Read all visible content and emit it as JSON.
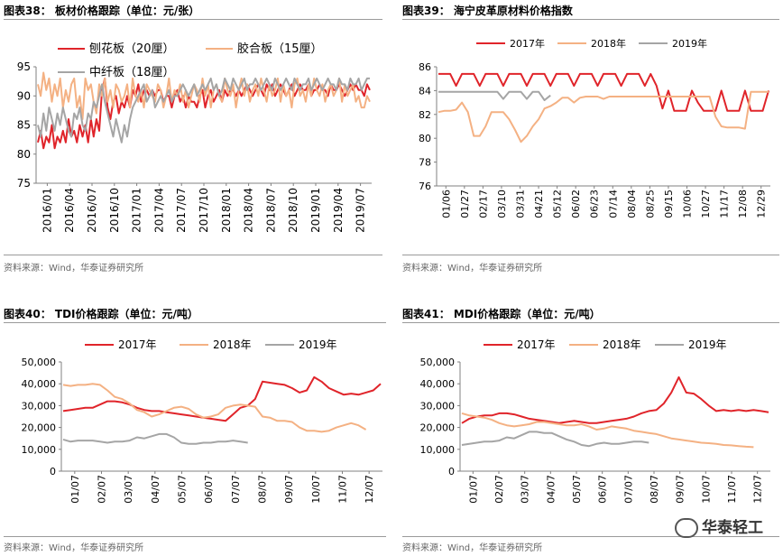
{
  "source": "资料来源：Wind，华泰证券研究所",
  "watermark": "华泰轻工",
  "colors": {
    "red": "#e0242a",
    "orange": "#f4b183",
    "gray": "#a5a5a5"
  },
  "chart_data": [
    {
      "id": "fig38",
      "fig_title": "图表38：  板材价格跟踪（单位：元/张）",
      "type": "line",
      "ylim": [
        75,
        95
      ],
      "yticks": [
        75,
        80,
        85,
        90,
        95
      ],
      "x_labels": [
        "2016/01",
        "2016/04",
        "2016/07",
        "2016/10",
        "2017/01",
        "2017/04",
        "2017/07",
        "2017/10",
        "2018/01",
        "2018/04",
        "2018/07",
        "2018/10",
        "2019/01",
        "2019/04",
        "2019/07"
      ],
      "series": [
        {
          "name": "刨花板（20厘）",
          "color": "red",
          "values": [
            82,
            84,
            81,
            83,
            82,
            85,
            81,
            83,
            82,
            84,
            82,
            86,
            83,
            84,
            82,
            85,
            83,
            85,
            82,
            86,
            83,
            86,
            84,
            91,
            93,
            88,
            86,
            89,
            90,
            87,
            89,
            88,
            90,
            88,
            91,
            90,
            92,
            89,
            91,
            91,
            90,
            91,
            90,
            91,
            91,
            89,
            90,
            90,
            88,
            90,
            91,
            89,
            90,
            88,
            90,
            89,
            89,
            88,
            90,
            91,
            88,
            90,
            91,
            89,
            90,
            91,
            89,
            91,
            90,
            91,
            91,
            90,
            91,
            90,
            91,
            92,
            91,
            90,
            91,
            92,
            91,
            90,
            92,
            91,
            92,
            90,
            91,
            92,
            91,
            90,
            91,
            92,
            90,
            91,
            92,
            91,
            91,
            92,
            90,
            91,
            91,
            92,
            91,
            91,
            90,
            92,
            91,
            91,
            92,
            91,
            90,
            91,
            92,
            91,
            92,
            91,
            91,
            90,
            92,
            91
          ]
        },
        {
          "name": "胶合板（15厘）",
          "color": "orange",
          "values": [
            92,
            90,
            94,
            91,
            93,
            89,
            92,
            90,
            93,
            88,
            91,
            89,
            92,
            93,
            88,
            90,
            86,
            93,
            91,
            92,
            89,
            87,
            92,
            90,
            93,
            89,
            91,
            88,
            92,
            91,
            89,
            90,
            92,
            88,
            93,
            90,
            89,
            91,
            88,
            92,
            91,
            90,
            89,
            92,
            91,
            88,
            90,
            93,
            89,
            91,
            90,
            92,
            89,
            91,
            88,
            90,
            92,
            91,
            89,
            93,
            90,
            92,
            88,
            91,
            92,
            90,
            89,
            93,
            91,
            90,
            92,
            88,
            91,
            93,
            90,
            92,
            89,
            91,
            92,
            90,
            93,
            91,
            89,
            92,
            90,
            91,
            93,
            89,
            92,
            90,
            91,
            88,
            92,
            93,
            90,
            91,
            89,
            92,
            90,
            93,
            91,
            90,
            92,
            89,
            91,
            92,
            90,
            91,
            93,
            89,
            92,
            90,
            91,
            92,
            89,
            90,
            88,
            88,
            90,
            89
          ]
        },
        {
          "name": "中纤板（18厘）",
          "color": "gray",
          "values": [
            85,
            83,
            87,
            84,
            88,
            86,
            84,
            87,
            85,
            88,
            86,
            84,
            83,
            87,
            86,
            88,
            85,
            84,
            87,
            86,
            89,
            88,
            90,
            92,
            89,
            87,
            85,
            83,
            86,
            84,
            82,
            85,
            83,
            86,
            88,
            89,
            90,
            91,
            92,
            89,
            90,
            91,
            88,
            89,
            90,
            89,
            90,
            91,
            89,
            90,
            90,
            91,
            92,
            91,
            90,
            91,
            92,
            90,
            91,
            92,
            91,
            92,
            93,
            91,
            92,
            90,
            91,
            93,
            92,
            91,
            93,
            92,
            91,
            92,
            93,
            91,
            92,
            92,
            93,
            92,
            91,
            92,
            93,
            92,
            91,
            93,
            92,
            91,
            92,
            93,
            92,
            91,
            93,
            92,
            91,
            92,
            92,
            93,
            91,
            92,
            93,
            92,
            91,
            92,
            93,
            92,
            92,
            91,
            93,
            92,
            92,
            91,
            93,
            92,
            92,
            93,
            91,
            92,
            93,
            93
          ]
        }
      ],
      "legend": "top-left",
      "grid": false
    },
    {
      "id": "fig39",
      "fig_title": "图表39：  海宁皮革原材料价格指数",
      "type": "line",
      "ylim": [
        76,
        86
      ],
      "yticks": [
        76,
        78,
        80,
        82,
        84,
        86
      ],
      "x_labels": [
        "01/06",
        "01/27",
        "02/17",
        "03/10",
        "03/31",
        "04/21",
        "05/12",
        "06/02",
        "06/23",
        "07/14",
        "08/04",
        "08/25",
        "09/15",
        "10/06",
        "10/27",
        "11/17",
        "12/08",
        "12/29"
      ],
      "series": [
        {
          "name": "2017年",
          "color": "red",
          "values": [
            85.4,
            85.4,
            85.4,
            84.4,
            85.4,
            85.4,
            85.4,
            84.4,
            85.4,
            85.4,
            85.4,
            84.4,
            85.4,
            85.4,
            85.4,
            84.4,
            85.4,
            85.4,
            85.4,
            84.4,
            85.4,
            85.4,
            85.4,
            84.4,
            85.4,
            85.4,
            85.4,
            84.4,
            85.4,
            85.4,
            85.4,
            84.4,
            85.4,
            85.4,
            85.4,
            84.4,
            85.4,
            84.4,
            82.5,
            84.0,
            82.3,
            82.3,
            82.3,
            84.0,
            83.0,
            82.3,
            82.3,
            82.3,
            84.0,
            82.3,
            82.3,
            82.3,
            84.0,
            82.3,
            82.3,
            82.3,
            84.0
          ]
        },
        {
          "name": "2018年",
          "color": "orange",
          "values": [
            82.2,
            82.3,
            82.3,
            82.4,
            83.0,
            82.2,
            80.2,
            80.2,
            81.0,
            82.2,
            82.2,
            82.2,
            81.6,
            80.7,
            79.7,
            80.2,
            81.0,
            81.6,
            82.5,
            82.7,
            83.0,
            83.4,
            83.4,
            83.0,
            83.4,
            83.5,
            83.5,
            83.5,
            83.3,
            83.5,
            83.5,
            83.5,
            83.5,
            83.5,
            83.5,
            83.5,
            83.5,
            83.5,
            83.5,
            83.5,
            83.5,
            83.5,
            83.5,
            83.5,
            83.5,
            83.5,
            83.5,
            81.8,
            81.0,
            80.9,
            80.9,
            80.9,
            80.8,
            83.9,
            83.9,
            83.9,
            83.9
          ]
        },
        {
          "name": "2019年",
          "color": "gray",
          "values": [
            83.9,
            83.9,
            83.9,
            83.9,
            83.9,
            83.9,
            83.9,
            83.9,
            83.9,
            83.9,
            83.9,
            83.3,
            83.9,
            83.9,
            83.9,
            83.3,
            83.9,
            83.9,
            83.2,
            83.6
          ]
        }
      ],
      "legend": "top",
      "grid": false
    },
    {
      "id": "fig40",
      "fig_title": "图表40：  TDI价格跟踪（单位：元/吨）",
      "type": "line",
      "ylim": [
        0,
        50000
      ],
      "yticks": [
        0,
        10000,
        20000,
        30000,
        40000,
        50000
      ],
      "ytick_labels": [
        "0",
        "10,000",
        "20,000",
        "30,000",
        "40,000",
        "50,000"
      ],
      "x_labels": [
        "01/07",
        "02/07",
        "03/07",
        "04/07",
        "05/07",
        "06/07",
        "07/07",
        "08/07",
        "09/07",
        "10/07",
        "11/07",
        "12/07"
      ],
      "series": [
        {
          "name": "2017年",
          "color": "red",
          "values": [
            27500,
            28000,
            28500,
            29000,
            29000,
            30500,
            32000,
            32000,
            31500,
            30500,
            29000,
            28000,
            27500,
            27500,
            27000,
            26500,
            26000,
            25500,
            25000,
            24500,
            24000,
            23500,
            23000,
            26000,
            29000,
            30000,
            33000,
            41000,
            40500,
            40000,
            39500,
            38000,
            36000,
            37000,
            43000,
            41000,
            38000,
            36500,
            35000,
            35500,
            35000,
            36000,
            37000,
            40000
          ]
        },
        {
          "name": "2018年",
          "color": "orange",
          "values": [
            39500,
            39000,
            39500,
            39500,
            40000,
            39500,
            37000,
            34000,
            33000,
            31000,
            28000,
            27000,
            25000,
            26000,
            27500,
            29000,
            29500,
            28500,
            26000,
            24500,
            25000,
            26000,
            29000,
            30000,
            30500,
            30000,
            29500,
            25000,
            24500,
            23000,
            23000,
            22500,
            20000,
            18500,
            18500,
            18000,
            18500,
            20000,
            21000,
            22000,
            21000,
            19000
          ]
        },
        {
          "name": "2019年",
          "color": "gray",
          "values": [
            14500,
            13500,
            14000,
            14000,
            14000,
            13500,
            13000,
            13500,
            13500,
            14000,
            15500,
            15000,
            16000,
            17000,
            17000,
            15500,
            13000,
            12500,
            12500,
            13000,
            13000,
            13500,
            13500,
            14000,
            13500,
            13000
          ]
        }
      ],
      "legend": "top",
      "grid": false
    },
    {
      "id": "fig41",
      "fig_title": "图表41：  MDI价格跟踪（单位：元/吨）",
      "type": "line",
      "ylim": [
        0,
        50000
      ],
      "yticks": [
        0,
        10000,
        20000,
        30000,
        40000,
        50000
      ],
      "ytick_labels": [
        "0",
        "10,000",
        "20,000",
        "30,000",
        "40,000",
        "50,000"
      ],
      "x_labels": [
        "01/07",
        "02/07",
        "03/07",
        "04/07",
        "05/07",
        "06/07",
        "07/07",
        "08/07",
        "09/07",
        "10/07",
        "11/07",
        "12/07"
      ],
      "series": [
        {
          "name": "2017年",
          "color": "red",
          "values": [
            22000,
            24000,
            25000,
            25500,
            25500,
            26500,
            26500,
            26000,
            25000,
            24000,
            23500,
            23000,
            22500,
            22000,
            22500,
            23000,
            22500,
            22000,
            22000,
            22500,
            23000,
            23500,
            24000,
            25000,
            26500,
            27500,
            28000,
            31000,
            36000,
            43000,
            36000,
            35500,
            33000,
            30000,
            27500,
            28000,
            27500,
            28000,
            27500,
            28000,
            27500,
            27000
          ]
        },
        {
          "name": "2018年",
          "color": "orange",
          "values": [
            26500,
            25500,
            25000,
            24500,
            23500,
            22000,
            21000,
            20500,
            21000,
            21500,
            22500,
            22500,
            22000,
            21500,
            21000,
            21000,
            21500,
            20500,
            19000,
            19500,
            20500,
            20000,
            19500,
            18500,
            18000,
            17500,
            17000,
            16000,
            15000,
            14500,
            14000,
            13500,
            13000,
            12800,
            12500,
            12000,
            11800,
            11500,
            11200,
            11000
          ]
        },
        {
          "name": "2019年",
          "color": "gray",
          "values": [
            12000,
            12500,
            13000,
            13500,
            13500,
            14000,
            15500,
            15000,
            16500,
            18000,
            18000,
            17500,
            17500,
            16000,
            14500,
            13500,
            12000,
            11500,
            12500,
            13000,
            12500,
            12500,
            13000,
            13500,
            13500,
            13000
          ]
        }
      ],
      "legend": "top",
      "grid": false
    }
  ]
}
